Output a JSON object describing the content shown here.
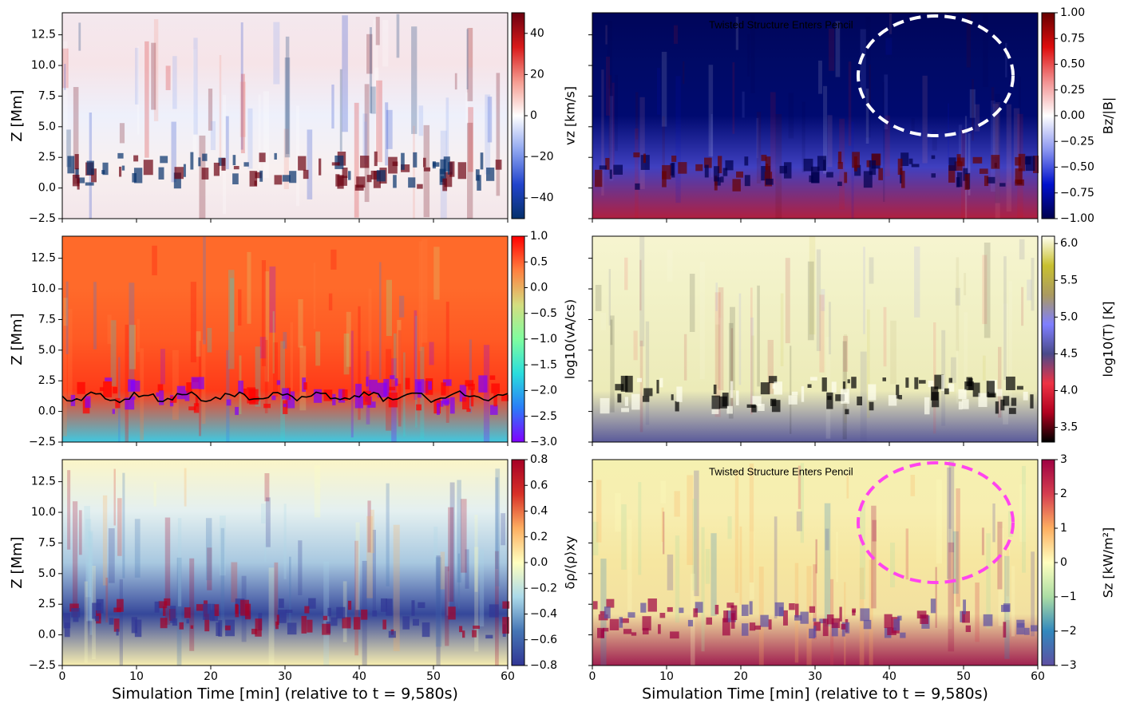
{
  "chart_data": [
    {
      "type": "heatmap",
      "ylabel": "Z [Mm]",
      "xlim": [
        0,
        60
      ],
      "xticks": [
        0,
        10,
        20,
        30,
        40,
        50,
        60
      ],
      "ylim": [
        -2.5,
        14.3
      ],
      "yticks": [
        {
          "value": -2.5,
          "label": "−2.5"
        },
        {
          "value": 0,
          "label": "0.0"
        },
        2.5,
        {
          "value": 5,
          "label": "5.0"
        },
        7.5,
        {
          "value": 10,
          "label": "10.0"
        },
        12.5
      ],
      "colorbar": {
        "label": "vz [km/s]",
        "clim": [
          -50,
          50
        ],
        "ticks": [
          {
            "value": -40,
            "label": "−40"
          },
          {
            "value": -20,
            "label": "−20"
          },
          0,
          20,
          40
        ],
        "colors": [
          "#05306b",
          "#2244cc",
          "#8fa6f0",
          "#ffffff",
          "#f59b8f",
          "#d81a1a",
          "#6b0010"
        ]
      }
    },
    {
      "type": "heatmap",
      "annotation": "Twisted Structure Enters Pencil",
      "xlim": [
        0,
        60
      ],
      "xticks": [
        0,
        10,
        20,
        30,
        40,
        50,
        60
      ],
      "ylim": [
        -2.5,
        14.3
      ],
      "yticks": [
        -2.5,
        0,
        2.5,
        5,
        7.5,
        10,
        12.5
      ],
      "colorbar": {
        "label": "Bz/|B|",
        "clim": [
          -1,
          1
        ],
        "ticks": [
          {
            "value": -1,
            "label": "−1.00"
          },
          {
            "value": -0.75,
            "label": "−0.75"
          },
          {
            "value": -0.5,
            "label": "−0.50"
          },
          {
            "value": -0.25,
            "label": "−0.25"
          },
          {
            "value": 0,
            "label": "0.00"
          },
          0.25,
          {
            "value": 0.5,
            "label": "0.50"
          },
          0.75,
          {
            "value": 1,
            "label": "1.00"
          }
        ],
        "colors": [
          "#00004d",
          "#0011cc",
          "#8a95f0",
          "#ffffff",
          "#f29090",
          "#dd0d0d",
          "#660000"
        ]
      }
    },
    {
      "type": "heatmap",
      "ylabel": "Z [Mm]",
      "xlim": [
        0,
        60
      ],
      "xticks": [
        0,
        10,
        20,
        30,
        40,
        50,
        60
      ],
      "ylim": [
        -2.5,
        14.3
      ],
      "yticks": [
        {
          "value": -2.5,
          "label": "−2.5"
        },
        {
          "value": 0,
          "label": "0.0"
        },
        2.5,
        {
          "value": 5,
          "label": "5.0"
        },
        7.5,
        {
          "value": 10,
          "label": "10.0"
        },
        12.5
      ],
      "colorbar": {
        "label": "log10(vA/cs)",
        "clim": [
          -3,
          1
        ],
        "ticks": [
          {
            "value": -3,
            "label": "−3.0"
          },
          {
            "value": -2.5,
            "label": "−2.5"
          },
          {
            "value": -2,
            "label": "−2.0"
          },
          {
            "value": -1.5,
            "label": "−1.5"
          },
          {
            "value": -1,
            "label": "−1.0"
          },
          {
            "value": -0.5,
            "label": "−0.5"
          },
          {
            "value": 0,
            "label": "0.0"
          },
          0.5,
          {
            "value": 1,
            "label": "1.0"
          }
        ],
        "colors": [
          "#8000ff",
          "#2a7df8",
          "#2adddd",
          "#7ffd9f",
          "#d4dd80",
          "#ff8040",
          "#ff0000"
        ]
      }
    },
    {
      "type": "heatmap",
      "xlim": [
        0,
        60
      ],
      "xticks": [
        0,
        10,
        20,
        30,
        40,
        50,
        60
      ],
      "ylim": [
        -2.5,
        14.3
      ],
      "yticks": [
        -2.5,
        0,
        2.5,
        5,
        7.5,
        10,
        12.5
      ],
      "colorbar": {
        "label": "log10(T) [K]",
        "clim": [
          3.3,
          6.1
        ],
        "ticks": [
          3.5,
          {
            "value": 4,
            "label": "4.0"
          },
          4.5,
          {
            "value": 5,
            "label": "5.0"
          },
          5.5,
          {
            "value": 6,
            "label": "6.0"
          }
        ],
        "colors": [
          "#000000",
          "#b00020",
          "#ee3344",
          "#4a4a8a",
          "#7f7fff",
          "#aa9a60",
          "#c8c030",
          "#fffff0"
        ]
      }
    },
    {
      "type": "heatmap",
      "ylabel": "Z [Mm]",
      "xlabel": "Simulation Time [min] (relative to t = 9,580s)",
      "xlim": [
        0,
        60
      ],
      "xticks": [
        0,
        10,
        20,
        30,
        40,
        50,
        60
      ],
      "ylim": [
        -2.5,
        14.3
      ],
      "yticks": [
        {
          "value": -2.5,
          "label": "−2.5"
        },
        {
          "value": 0,
          "label": "0.0"
        },
        2.5,
        {
          "value": 5,
          "label": "5.0"
        },
        7.5,
        {
          "value": 10,
          "label": "10.0"
        },
        12.5
      ],
      "colorbar": {
        "label": "δρ/⟨ρ⟩xy",
        "clim": [
          -0.8,
          0.8
        ],
        "ticks": [
          {
            "value": -0.8,
            "label": "−0.8"
          },
          {
            "value": -0.6,
            "label": "−0.6"
          },
          {
            "value": -0.4,
            "label": "−0.4"
          },
          {
            "value": -0.2,
            "label": "−0.2"
          },
          {
            "value": 0,
            "label": "0.0"
          },
          0.2,
          0.4,
          0.6,
          0.8
        ],
        "colors": [
          "#313695",
          "#4575b4",
          "#abd9e9",
          "#ffffbf",
          "#fdae61",
          "#d73027",
          "#a50026"
        ]
      }
    },
    {
      "type": "heatmap",
      "annotation": "Twisted Structure Enters Pencil",
      "xlabel": "Simulation Time [min] (relative to t = 9,580s)",
      "xlim": [
        0,
        60
      ],
      "xticks": [
        0,
        10,
        20,
        30,
        40,
        50,
        60
      ],
      "ylim": [
        -2.5,
        14.3
      ],
      "yticks": [
        -2.5,
        0,
        2.5,
        5,
        7.5,
        10,
        12.5
      ],
      "colorbar": {
        "label": "Sz [kW/m²]",
        "clim": [
          -3,
          3
        ],
        "ticks": [
          {
            "value": -3,
            "label": "−3"
          },
          {
            "value": -2,
            "label": "−2"
          },
          {
            "value": -1,
            "label": "−1"
          },
          0,
          1,
          2,
          3
        ],
        "colors": [
          "#5e4fa2",
          "#3288bd",
          "#abdda4",
          "#ffffbf",
          "#fdae61",
          "#d53e4f",
          "#9e0142"
        ]
      }
    }
  ]
}
